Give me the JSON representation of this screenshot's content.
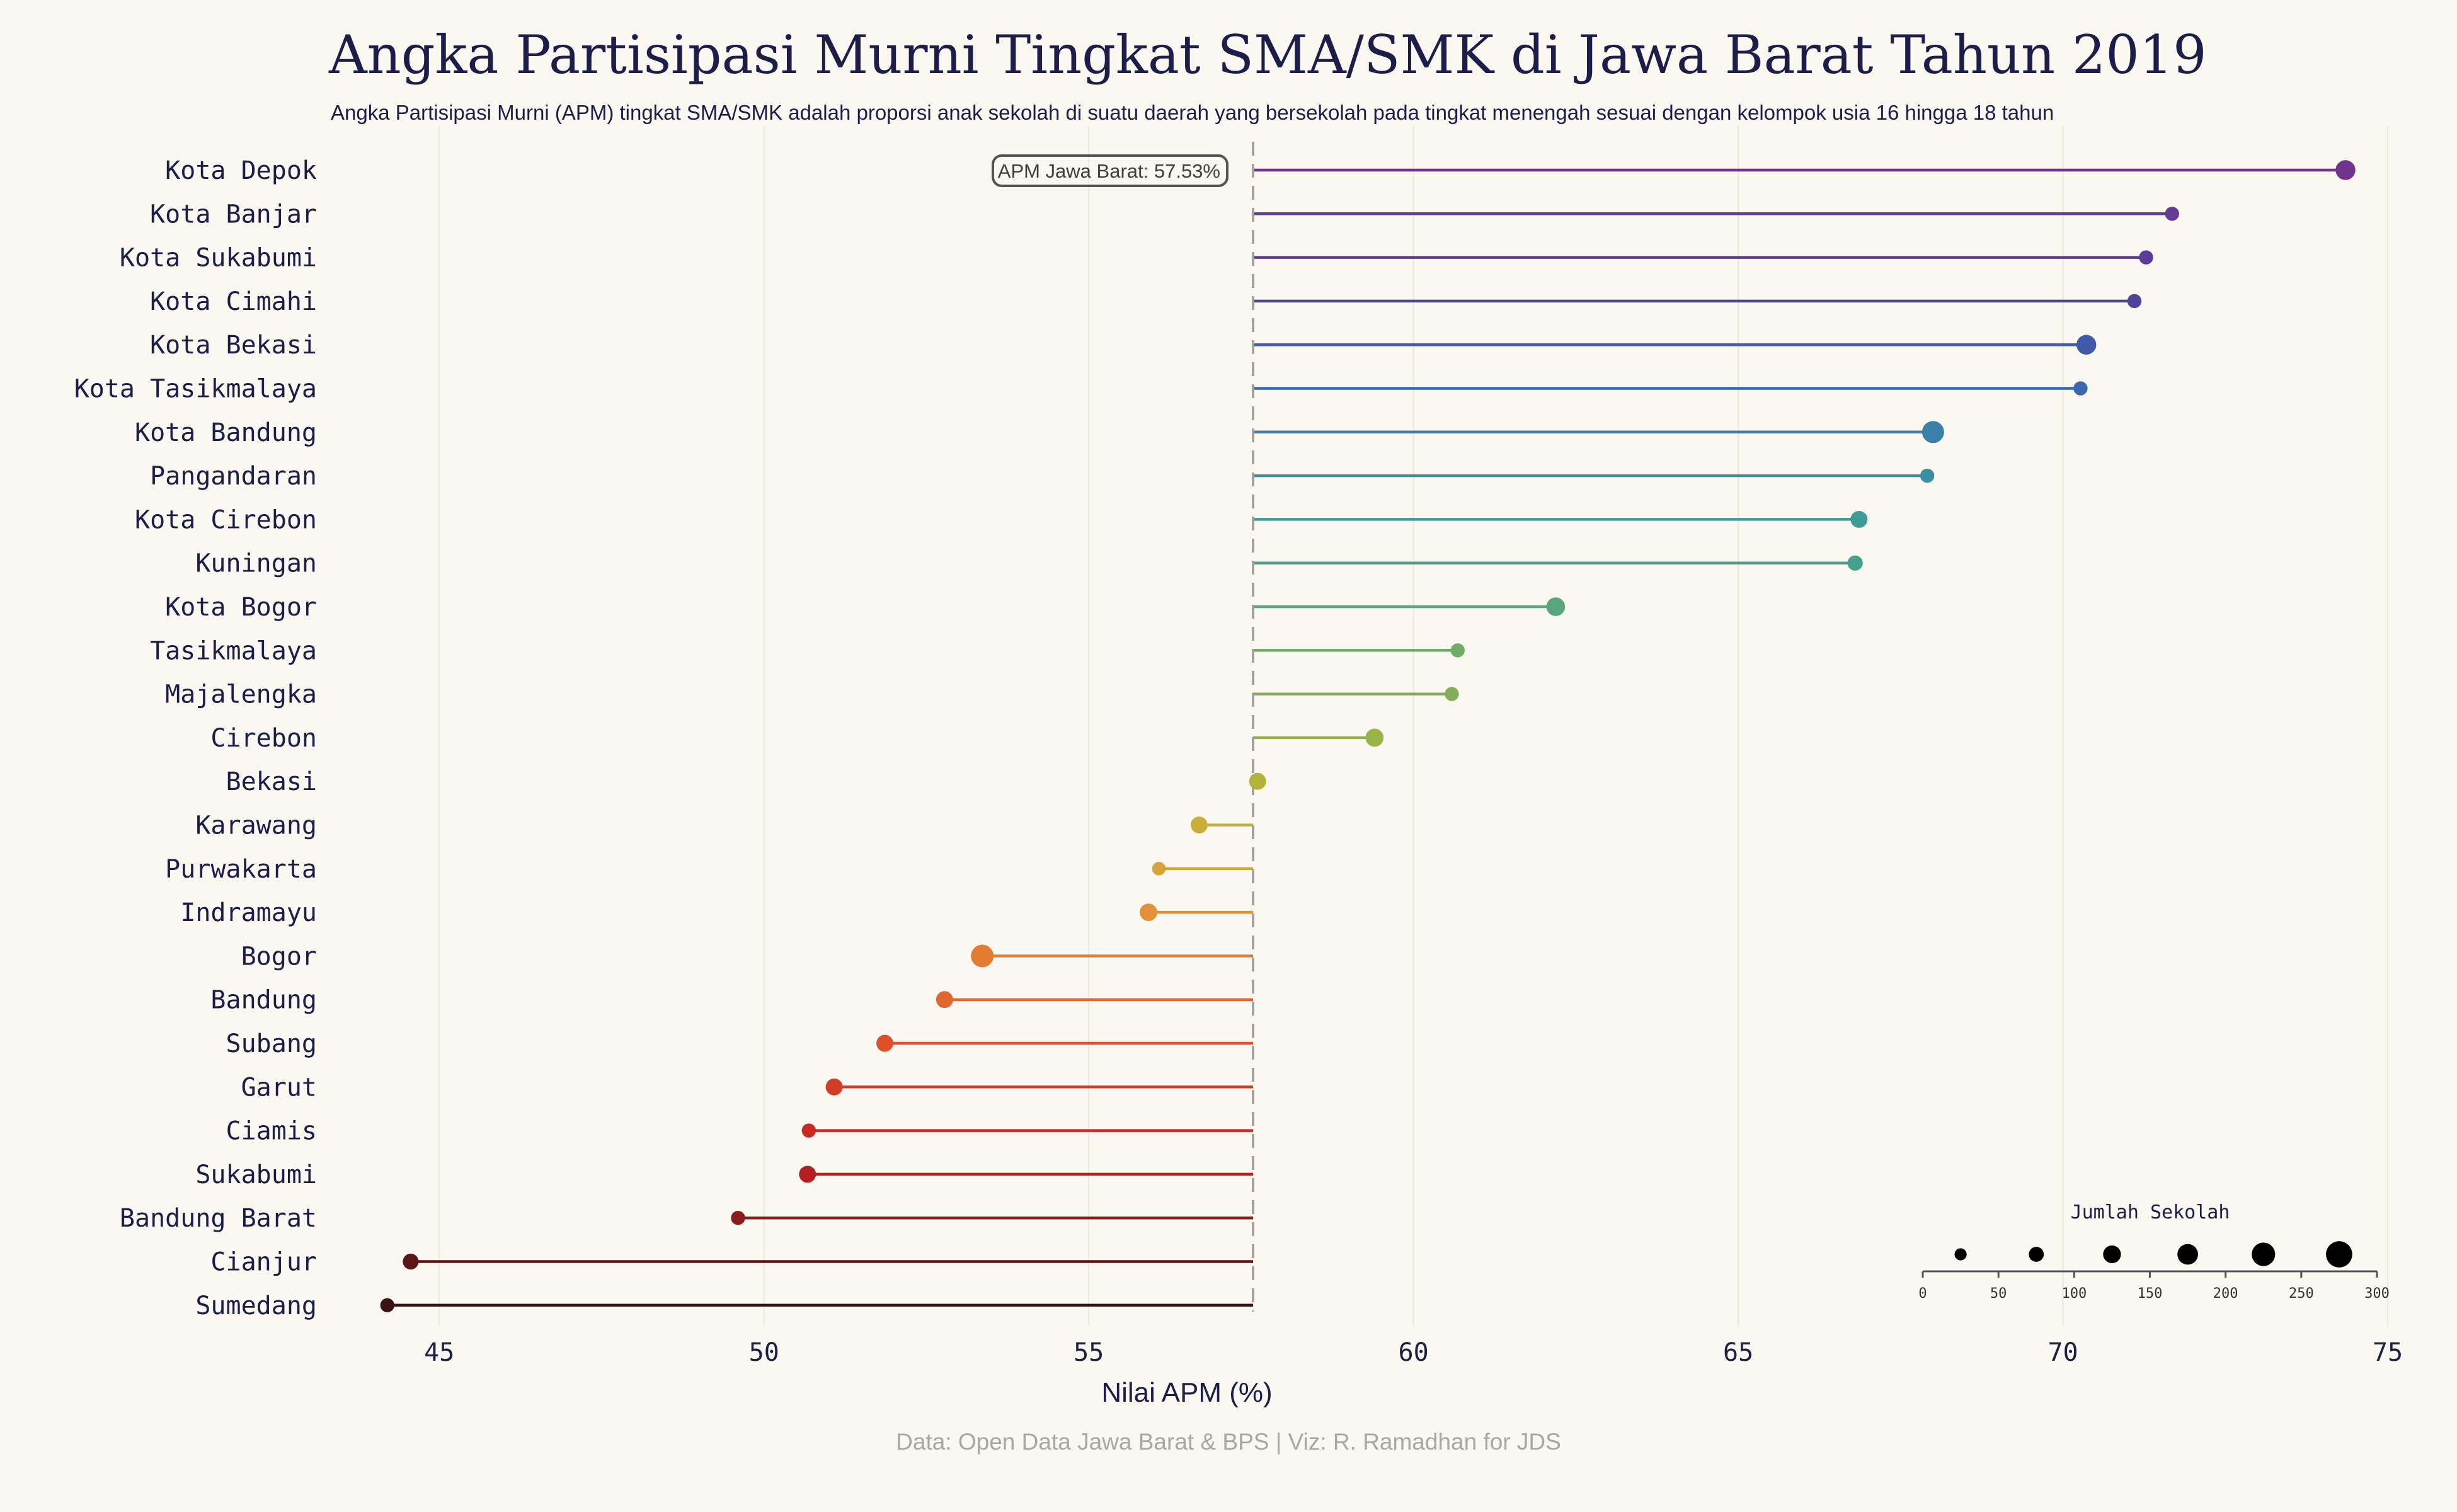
{
  "title": "Angka Partisipasi Murni Tingkat SMA/SMK di Jawa Barat Tahun 2019",
  "subtitle": "Angka Partisipasi Murni (APM) tingkat SMA/SMK adalah proporsi anak sekolah di suatu daerah yang bersekolah pada tingkat menengah sesuai dengan kelompok usia 16 hingga 18 tahun",
  "caption": "Data: Open Data Jawa Barat & BPS | Viz: R. Ramadhan for JDS",
  "chart_data": {
    "type": "lollipop",
    "title": "Angka Partisipasi Murni Tingkat SMA/SMK di Jawa Barat Tahun 2019",
    "xlabel": "Nilai APM (%)",
    "xlim": [
      43.3,
      75
    ],
    "xticks": [
      45,
      50,
      55,
      60,
      65,
      70,
      75
    ],
    "grid": true,
    "reference": {
      "value": 57.53,
      "label": "APM Jawa Barat: 57.53%"
    },
    "categories": [
      "Kota Depok",
      "Kota Banjar",
      "Kota Sukabumi",
      "Kota Cimahi",
      "Kota Bekasi",
      "Kota Tasikmalaya",
      "Kota Bandung",
      "Pangandaran",
      "Kota Cirebon",
      "Kuningan",
      "Kota Bogor",
      "Tasikmalaya",
      "Majalengka",
      "Cirebon",
      "Bekasi",
      "Karawang",
      "Purwakarta",
      "Indramayu",
      "Bogor",
      "Bandung",
      "Subang",
      "Garut",
      "Ciamis",
      "Sukabumi",
      "Bandung Barat",
      "Cianjur",
      "Sumedang"
    ],
    "values": [
      74.35,
      71.68,
      71.28,
      71.1,
      70.36,
      70.27,
      68.0,
      67.91,
      66.86,
      66.8,
      62.19,
      60.68,
      60.59,
      59.4,
      57.6,
      56.7,
      56.08,
      55.92,
      53.36,
      52.78,
      51.86,
      51.08,
      50.69,
      50.67,
      49.6,
      44.56,
      44.2
    ],
    "jumlah_sekolah": [
      160,
      60,
      60,
      60,
      160,
      60,
      200,
      60,
      110,
      80,
      140,
      60,
      60,
      130,
      110,
      110,
      50,
      120,
      210,
      110,
      110,
      110,
      60,
      110,
      60,
      90,
      60
    ],
    "colors": [
      "#72338b",
      "#643a93",
      "#5a3d96",
      "#4f4399",
      "#3f5aa8",
      "#3a67ad",
      "#3b80a8",
      "#3b8ea2",
      "#3d9a95",
      "#45a08d",
      "#5aa67c",
      "#72ab68",
      "#82ae5a",
      "#98b347",
      "#b1b439",
      "#c9ae39",
      "#d8a43a",
      "#e1913a",
      "#e37c33",
      "#e0672e",
      "#dc512a",
      "#d33c26",
      "#c72b23",
      "#b31e20",
      "#8e1a1d",
      "#5c1516",
      "#3a1214"
    ],
    "size_legend": {
      "title": "Jumlah Sekolah",
      "ticks": [
        0,
        50,
        100,
        150,
        200,
        250,
        300
      ],
      "sample_values": [
        25,
        75,
        125,
        175,
        225,
        275
      ]
    }
  }
}
